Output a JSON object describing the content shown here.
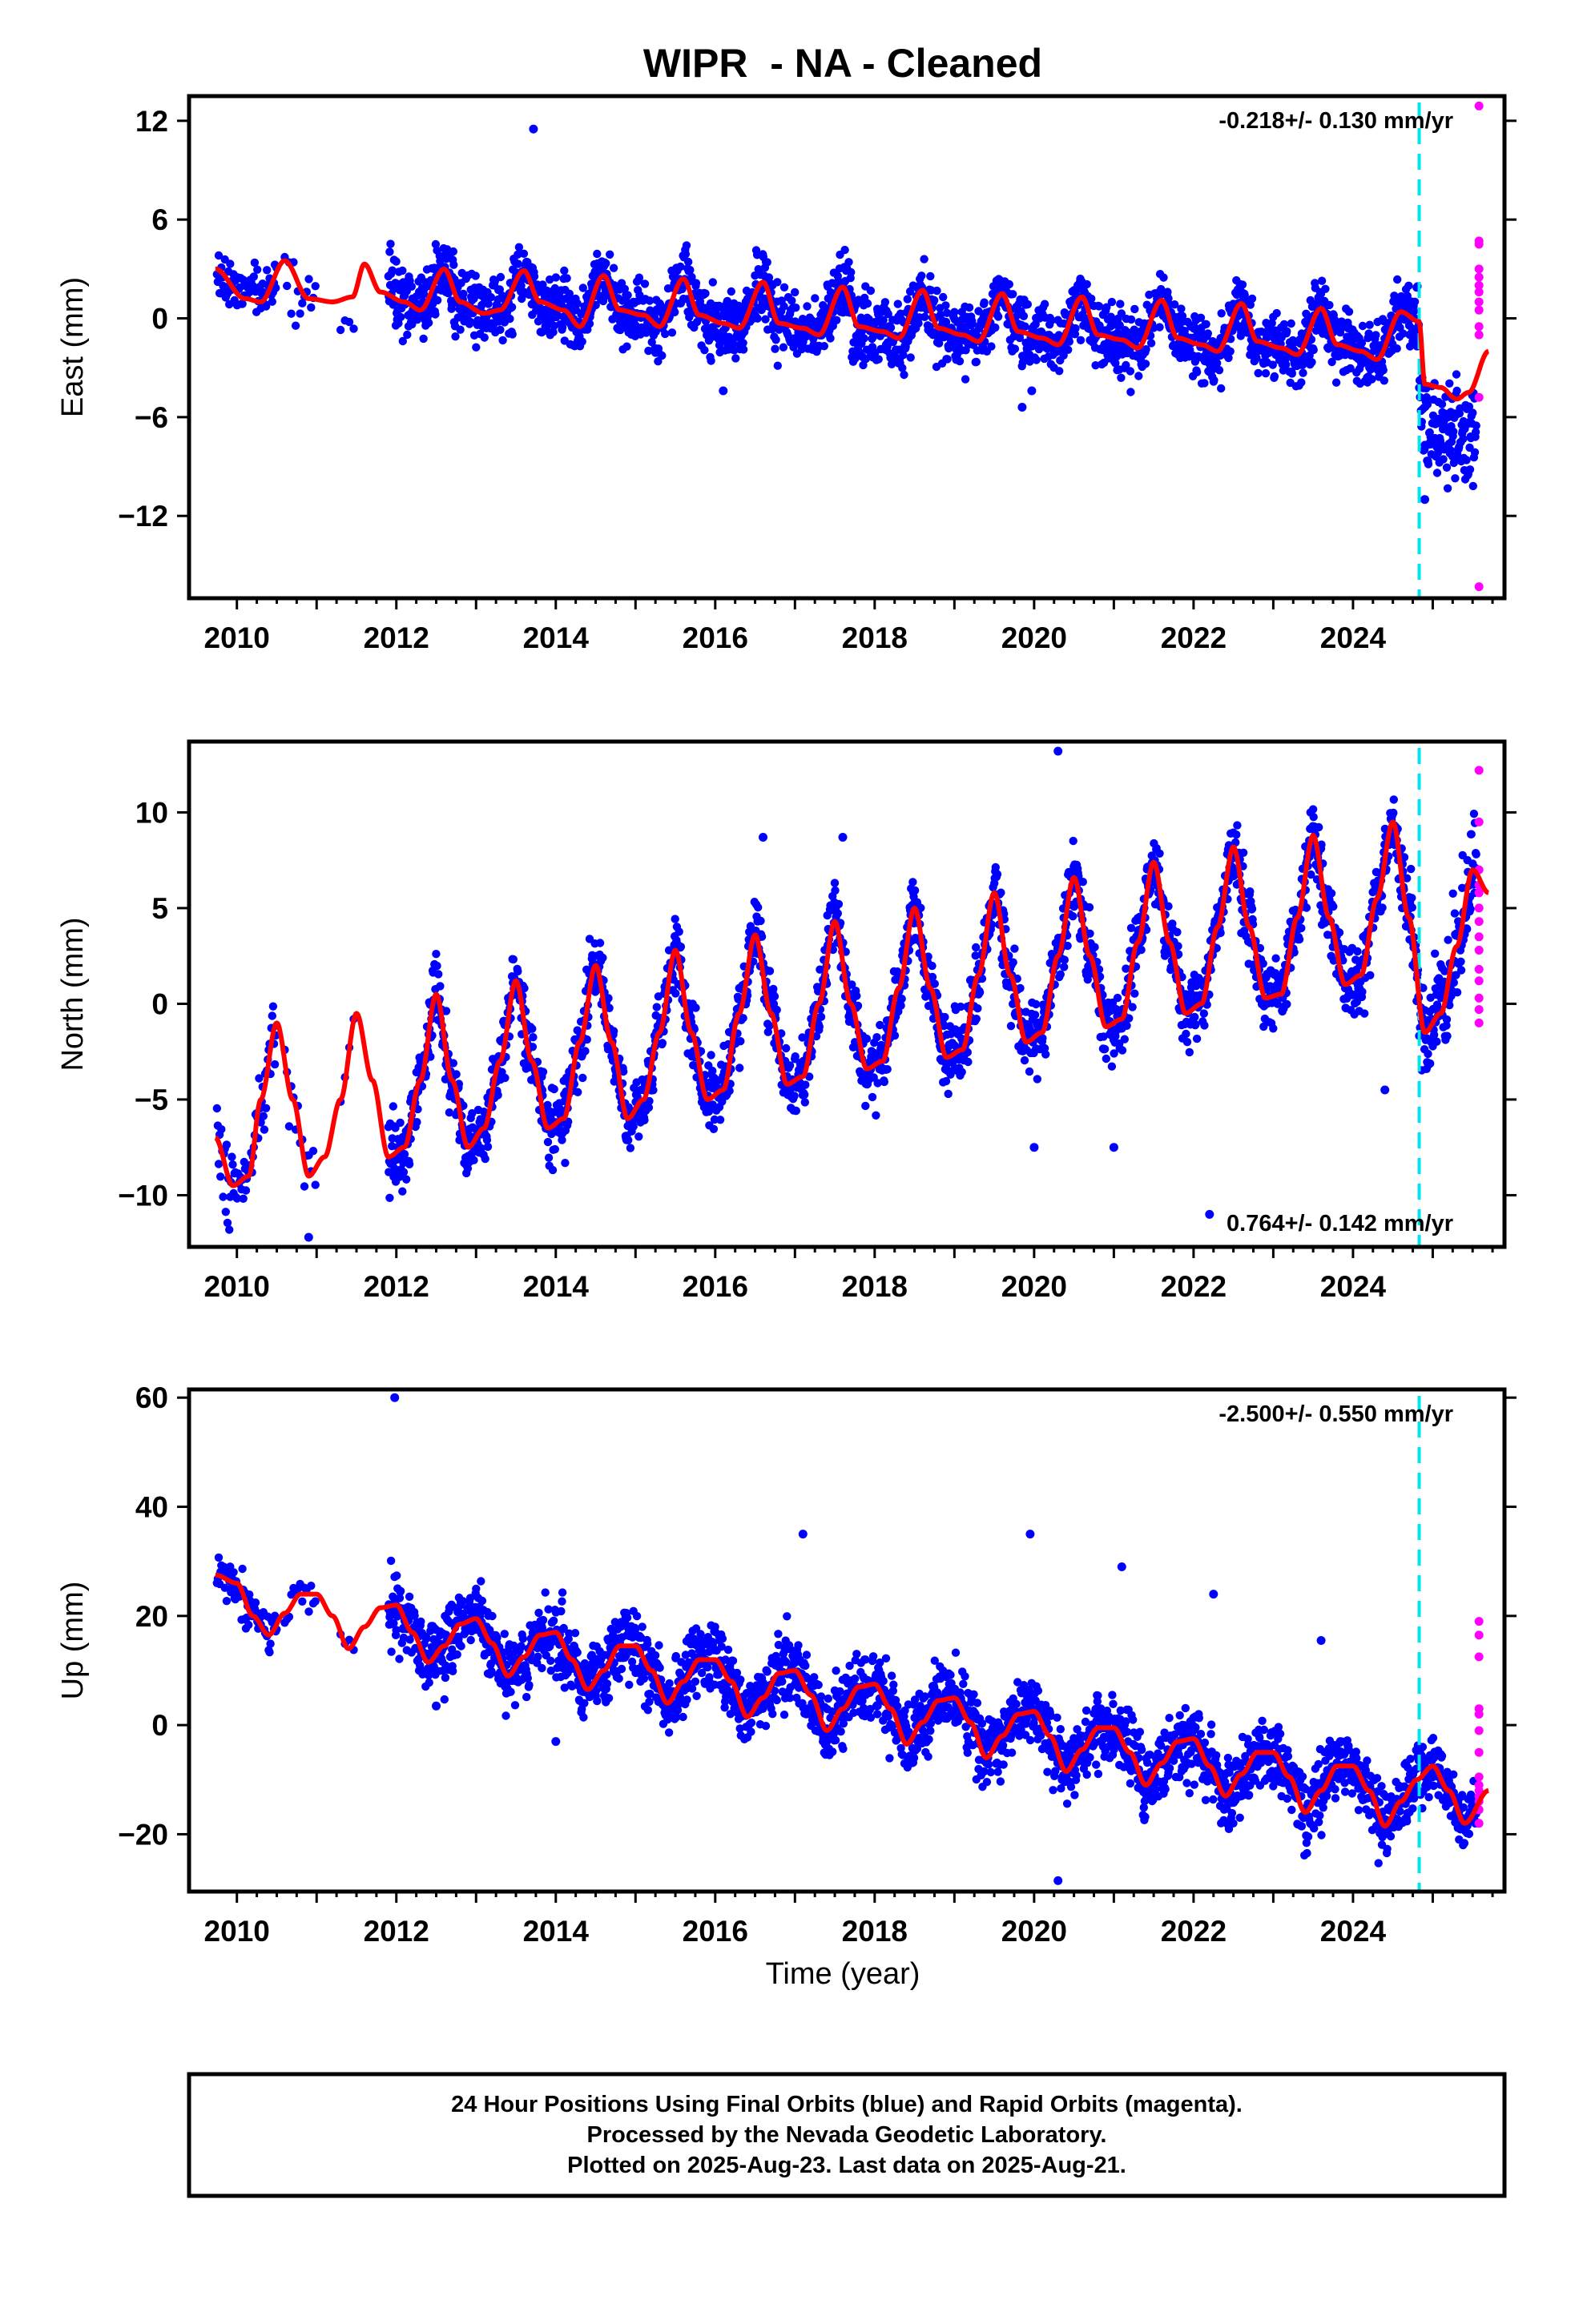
{
  "chart_data": {
    "type": "scatter",
    "title": "WIPR  - NA - Cleaned",
    "colors": {
      "final": "#0000ff",
      "rapid": "#ff00ff",
      "model": "#ff0000",
      "break": "#00e5ee"
    },
    "x_ticks": [
      2010,
      2012,
      2014,
      2016,
      2018,
      2020,
      2022,
      2024
    ],
    "xlim": [
      2009.4,
      2025.9
    ],
    "xlabel": "Time (year)",
    "break_epoch": 2024.83,
    "panels": [
      {
        "component": "east",
        "ylabel": "East (mm)",
        "ylim": [
          -17,
          13.5
        ],
        "y_ticks": [
          12,
          6,
          0,
          -6,
          -12
        ],
        "y_tick_labels": [
          "12",
          "6",
          "0",
          "−6",
          "−12"
        ],
        "rate_text": "-0.218+/- 0.130 mm/yr",
        "rate_position": "top-right",
        "model": {
          "knots_x": [
            2009.73,
            2010.1,
            2010.3,
            2010.6,
            2010.9,
            2011.2,
            2011.45,
            2011.6,
            2011.8,
            2012.1,
            2012.3,
            2012.6,
            2012.8,
            2013.1,
            2013.3,
            2013.6,
            2013.8,
            2014.1,
            2014.3,
            2014.6,
            2014.8,
            2015.1,
            2015.3,
            2015.6,
            2015.8,
            2016.1,
            2016.3,
            2016.6,
            2016.8,
            2017.1,
            2017.3,
            2017.6,
            2017.8,
            2018.1,
            2018.3,
            2018.6,
            2018.8,
            2019.1,
            2019.3,
            2019.6,
            2019.8,
            2020.1,
            2020.3,
            2020.6,
            2020.8,
            2021.1,
            2021.3,
            2021.6,
            2021.8,
            2022.1,
            2022.3,
            2022.6,
            2022.8,
            2023.1,
            2023.3,
            2023.6,
            2023.8,
            2024.1,
            2024.3,
            2024.6,
            2024.83,
            2024.9,
            2025.1,
            2025.3,
            2025.45,
            2025.7
          ],
          "knots_y": [
            3.0,
            1.2,
            1.0,
            3.5,
            1.2,
            1.0,
            1.3,
            3.3,
            1.6,
            1.0,
            0.5,
            3.0,
            1.0,
            0.3,
            0.5,
            2.9,
            1.0,
            0.5,
            -0.5,
            2.6,
            0.5,
            0.2,
            -0.5,
            2.4,
            0.2,
            -0.3,
            -0.6,
            2.2,
            -0.3,
            -0.6,
            -1.0,
            1.9,
            -0.5,
            -0.8,
            -1.2,
            1.7,
            -0.6,
            -1.0,
            -1.4,
            1.5,
            -0.8,
            -1.2,
            -1.6,
            1.3,
            -1.0,
            -1.3,
            -1.8,
            1.1,
            -1.2,
            -1.6,
            -2.0,
            0.9,
            -1.4,
            -1.8,
            -2.2,
            0.6,
            -1.6,
            -2.0,
            -2.5,
            0.4,
            -0.2,
            -4.0,
            -4.2,
            -4.9,
            -4.5,
            -2.0
          ]
        },
        "final_groups": [
          {
            "x_range": [
              2009.75,
              2010.5
            ],
            "base": 1.5,
            "spread": 1.2,
            "density": 0.5
          },
          {
            "x_range": [
              2010.6,
              2011.0
            ],
            "base": 0.8,
            "spread": 1.4,
            "density": 0.2
          },
          {
            "x_range": [
              2011.3,
              2011.5
            ],
            "base": -0.5,
            "spread": 1.2,
            "density": 0.1
          },
          {
            "x_range": [
              2011.9,
              2024.83
            ],
            "base": 0.0,
            "spread": 1.4,
            "density": 1.0
          },
          {
            "x_range": [
              2024.83,
              2025.55
            ],
            "base": -4.0,
            "spread": 2.2,
            "density": 1.0
          }
        ],
        "outliers": [
          [
            2013.72,
            11.5
          ],
          [
            2019.85,
            -5.4
          ],
          [
            2019.97,
            -4.4
          ],
          [
            2016.1,
            -4.4
          ],
          [
            2024.9,
            -11.0
          ]
        ],
        "rapid": [
          12.9,
          4.7,
          4.5,
          3.0,
          2.5,
          2.0,
          1.6,
          1.0,
          0.5,
          -0.5,
          -1.0,
          -4.8,
          -16.3
        ]
      },
      {
        "component": "north",
        "ylabel": "North (mm)",
        "ylim": [
          -12.7,
          13.7
        ],
        "y_ticks": [
          10,
          5,
          0,
          -5,
          -10
        ],
        "y_tick_labels": [
          "10",
          "5",
          "0",
          "−5",
          "−10"
        ],
        "rate_text": "0.764+/- 0.142 mm/yr",
        "rate_position": "bottom-right",
        "model": {
          "knots_x": [
            2009.73,
            2009.95,
            2010.15,
            2010.3,
            2010.5,
            2010.7,
            2010.9,
            2011.1,
            2011.3,
            2011.5,
            2011.7,
            2011.9,
            2012.1,
            2012.3,
            2012.5,
            2012.7,
            2012.9,
            2013.1,
            2013.3,
            2013.5,
            2013.7,
            2013.9,
            2014.1,
            2014.3,
            2014.5,
            2014.7,
            2014.9,
            2015.1,
            2015.3,
            2015.5,
            2015.7,
            2015.9,
            2016.1,
            2016.3,
            2016.5,
            2016.7,
            2016.9,
            2017.1,
            2017.3,
            2017.5,
            2017.7,
            2017.9,
            2018.1,
            2018.3,
            2018.5,
            2018.7,
            2018.9,
            2019.1,
            2019.3,
            2019.5,
            2019.7,
            2019.9,
            2020.1,
            2020.3,
            2020.5,
            2020.7,
            2020.9,
            2021.1,
            2021.3,
            2021.5,
            2021.7,
            2021.9,
            2022.1,
            2022.3,
            2022.5,
            2022.7,
            2022.9,
            2023.1,
            2023.3,
            2023.5,
            2023.7,
            2023.9,
            2024.1,
            2024.3,
            2024.5,
            2024.7,
            2024.9,
            2025.1,
            2025.3,
            2025.5,
            2025.7
          ],
          "knots_y": [
            -7.0,
            -9.5,
            -9.0,
            -5.0,
            -1.0,
            -5.0,
            -9.0,
            -8.0,
            -5.0,
            -0.5,
            -4.0,
            -8.0,
            -7.5,
            -4.0,
            0.5,
            -4.0,
            -7.5,
            -6.5,
            -3.0,
            1.2,
            -3.0,
            -6.5,
            -6.0,
            -2.0,
            2.0,
            -2.0,
            -6.0,
            -5.0,
            -1.5,
            2.8,
            -1.5,
            -5.0,
            -4.5,
            -0.5,
            3.6,
            -0.5,
            -4.2,
            -3.8,
            0.0,
            4.3,
            0.0,
            -3.4,
            -3.0,
            0.8,
            5.0,
            0.8,
            -2.8,
            -2.4,
            1.5,
            5.8,
            1.5,
            -2.0,
            -1.5,
            2.5,
            6.6,
            2.5,
            -1.2,
            -0.8,
            3.2,
            7.4,
            3.2,
            -0.5,
            0.0,
            4.0,
            8.2,
            4.0,
            0.3,
            0.5,
            4.5,
            8.8,
            4.5,
            1.0,
            1.5,
            5.5,
            9.5,
            4.5,
            -1.5,
            -0.5,
            3.0,
            7.0,
            5.8
          ]
        },
        "final_groups": [
          {
            "x_range": [
              2009.75,
              2010.5
            ],
            "base": 0,
            "spread": 1.4,
            "density": 0.5
          },
          {
            "x_range": [
              2010.6,
              2011.0
            ],
            "base": 0,
            "spread": 1.5,
            "density": 0.2
          },
          {
            "x_range": [
              2011.3,
              2011.5
            ],
            "base": 0,
            "spread": 1.2,
            "density": 0.1
          },
          {
            "x_range": [
              2011.9,
              2024.83
            ],
            "base": 0,
            "spread": 1.3,
            "density": 1.0
          },
          {
            "x_range": [
              2024.83,
              2025.55
            ],
            "base": 0,
            "spread": 1.8,
            "density": 1.0
          }
        ],
        "outliers": [
          [
            2020.3,
            13.2
          ],
          [
            2020.0,
            -7.5
          ],
          [
            2021.0,
            -7.5
          ],
          [
            2022.2,
            -11.0
          ],
          [
            2010.9,
            -12.2
          ],
          [
            2016.6,
            8.7
          ],
          [
            2017.6,
            8.7
          ],
          [
            2024.4,
            -4.5
          ]
        ],
        "rapid": [
          12.2,
          9.5,
          7.0,
          6.2,
          5.8,
          5.0,
          4.3,
          3.5,
          2.8,
          1.8,
          1.2,
          0.3,
          -0.3,
          -1.0
        ]
      },
      {
        "component": "up",
        "ylabel": "Up (mm)",
        "ylim": [
          -30.5,
          61.5
        ],
        "y_ticks": [
          60,
          40,
          20,
          0,
          -20
        ],
        "y_tick_labels": [
          "60",
          "40",
          "20",
          "0",
          "−20"
        ],
        "rate_text": "-2.500+/- 0.550 mm/yr",
        "rate_position": "top-right",
        "model": {
          "knots_x": [
            2009.73,
            2010.0,
            2010.2,
            2010.4,
            2010.6,
            2010.8,
            2011.0,
            2011.2,
            2011.4,
            2011.6,
            2011.8,
            2012.0,
            2012.2,
            2012.4,
            2012.6,
            2012.8,
            2013.0,
            2013.2,
            2013.4,
            2013.6,
            2013.8,
            2014.0,
            2014.2,
            2014.4,
            2014.6,
            2014.8,
            2015.0,
            2015.2,
            2015.4,
            2015.6,
            2015.8,
            2016.0,
            2016.2,
            2016.4,
            2016.6,
            2016.8,
            2017.0,
            2017.2,
            2017.4,
            2017.6,
            2017.8,
            2018.0,
            2018.2,
            2018.4,
            2018.6,
            2018.8,
            2019.0,
            2019.2,
            2019.4,
            2019.6,
            2019.8,
            2020.0,
            2020.2,
            2020.4,
            2020.6,
            2020.8,
            2021.0,
            2021.2,
            2021.4,
            2021.6,
            2021.8,
            2022.0,
            2022.2,
            2022.4,
            2022.6,
            2022.8,
            2023.0,
            2023.2,
            2023.4,
            2023.6,
            2023.8,
            2024.0,
            2024.2,
            2024.4,
            2024.6,
            2024.8,
            2025.0,
            2025.2,
            2025.4,
            2025.7
          ],
          "knots_y": [
            27.5,
            26.0,
            20.0,
            16.5,
            20.5,
            24.0,
            24.0,
            20.0,
            14.0,
            18.0,
            21.5,
            22.0,
            17.0,
            11.5,
            14.5,
            18.5,
            19.5,
            15.0,
            9.0,
            12.5,
            16.5,
            17.0,
            12.0,
            6.5,
            10.0,
            14.5,
            14.5,
            10.0,
            4.0,
            8.0,
            12.0,
            12.0,
            8.0,
            1.5,
            5.0,
            9.5,
            10.0,
            5.5,
            -1.0,
            3.0,
            7.0,
            7.5,
            3.0,
            -3.5,
            0.5,
            4.5,
            5.0,
            0.5,
            -6.0,
            -2.0,
            2.0,
            2.5,
            -2.0,
            -8.5,
            -4.5,
            -0.5,
            -0.5,
            -5.0,
            -11.0,
            -7.0,
            -3.0,
            -2.5,
            -7.5,
            -13.0,
            -9.0,
            -5.0,
            -5.0,
            -9.5,
            -16.0,
            -12.0,
            -7.5,
            -7.5,
            -12.0,
            -18.5,
            -14.0,
            -10.0,
            -7.5,
            -12.0,
            -18.0,
            -12.0
          ]
        },
        "final_groups": [
          {
            "x_range": [
              2009.75,
              2010.5
            ],
            "base": 0,
            "spread": 3.0,
            "density": 0.5
          },
          {
            "x_range": [
              2010.6,
              2011.0
            ],
            "base": 0,
            "spread": 3.0,
            "density": 0.2
          },
          {
            "x_range": [
              2011.3,
              2011.5
            ],
            "base": 0,
            "spread": 2.5,
            "density": 0.1
          },
          {
            "x_range": [
              2011.9,
              2024.83
            ],
            "base": 0,
            "spread": 4.5,
            "density": 1.0
          },
          {
            "x_range": [
              2024.83,
              2025.55
            ],
            "base": 0,
            "spread": 4.0,
            "density": 1.0
          }
        ],
        "outliers": [
          [
            2011.98,
            60.0
          ],
          [
            2017.1,
            35.0
          ],
          [
            2019.95,
            35.0
          ],
          [
            2021.1,
            29.0
          ],
          [
            2022.25,
            24.0
          ],
          [
            2020.3,
            -28.5
          ],
          [
            2012.5,
            3.5
          ],
          [
            2014.0,
            -3.0
          ],
          [
            2023.6,
            15.5
          ]
        ],
        "rapid": [
          19.0,
          16.5,
          12.5,
          3.0,
          2.0,
          -1.0,
          -5.0,
          -9.5,
          -11.0,
          -12.0,
          -13.0,
          -14.0,
          -15.5,
          -18.0
        ]
      }
    ],
    "caption": [
      "24 Hour Positions Using Final Orbits (blue) and Rapid Orbits (magenta).",
      "Processed by the Nevada Geodetic Laboratory.",
      "Plotted on 2025-Aug-23. Last data on 2025-Aug-21."
    ]
  }
}
